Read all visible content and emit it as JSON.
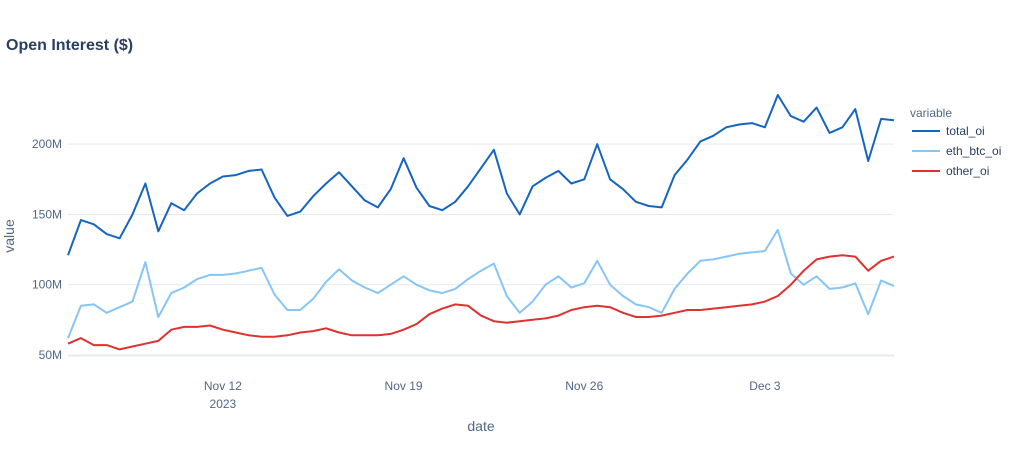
{
  "chart_data": {
    "type": "line",
    "title": "Open Interest ($)",
    "xlabel": "date",
    "ylabel": "value",
    "xlim": [
      "2023-11-06",
      "2023-12-08"
    ],
    "ylim": [
      45000000,
      235000000
    ],
    "grid": true,
    "legend_title": "variable",
    "legend_position": "right",
    "x_ticks": [
      {
        "date": "2023-11-12",
        "label": "Nov 12",
        "sublabel": "2023"
      },
      {
        "date": "2023-11-19",
        "label": "Nov 19",
        "sublabel": ""
      },
      {
        "date": "2023-11-26",
        "label": "Nov 26",
        "sublabel": ""
      },
      {
        "date": "2023-12-03",
        "label": "Dec 3",
        "sublabel": ""
      }
    ],
    "y_ticks": [
      {
        "value": 50000000,
        "label": "50M"
      },
      {
        "value": 100000000,
        "label": "100M"
      },
      {
        "value": 150000000,
        "label": "150M"
      },
      {
        "value": 200000000,
        "label": "200M"
      }
    ],
    "x": [
      "2023-11-06",
      "2023-11-06",
      "2023-11-07",
      "2023-11-07",
      "2023-11-08",
      "2023-11-08",
      "2023-11-09",
      "2023-11-09",
      "2023-11-10",
      "2023-11-10",
      "2023-11-11",
      "2023-11-11",
      "2023-11-12",
      "2023-11-12",
      "2023-11-13",
      "2023-11-13",
      "2023-11-14",
      "2023-11-14",
      "2023-11-15",
      "2023-11-15",
      "2023-11-16",
      "2023-11-16",
      "2023-11-17",
      "2023-11-17",
      "2023-11-18",
      "2023-11-18",
      "2023-11-19",
      "2023-11-19",
      "2023-11-20",
      "2023-11-20",
      "2023-11-21",
      "2023-11-21",
      "2023-11-22",
      "2023-11-22",
      "2023-11-23",
      "2023-11-23",
      "2023-11-24",
      "2023-11-24",
      "2023-11-25",
      "2023-11-25",
      "2023-11-26",
      "2023-11-26",
      "2023-11-27",
      "2023-11-27",
      "2023-11-28",
      "2023-11-28",
      "2023-11-29",
      "2023-11-29",
      "2023-11-30",
      "2023-11-30",
      "2023-12-01",
      "2023-12-01",
      "2023-12-02",
      "2023-12-02",
      "2023-12-03",
      "2023-12-03",
      "2023-12-04",
      "2023-12-04",
      "2023-12-05",
      "2023-12-05",
      "2023-12-06",
      "2023-12-06",
      "2023-12-07",
      "2023-12-07",
      "2023-12-08"
    ],
    "x_hour": [
      0,
      12,
      0,
      12,
      0,
      12,
      0,
      12,
      0,
      12,
      0,
      12,
      0,
      12,
      0,
      12,
      0,
      12,
      0,
      12,
      0,
      12,
      0,
      12,
      0,
      12,
      0,
      12,
      0,
      12,
      0,
      12,
      0,
      12,
      0,
      12,
      0,
      12,
      0,
      12,
      0,
      12,
      0,
      12,
      0,
      12,
      0,
      12,
      0,
      12,
      0,
      12,
      0,
      12,
      0,
      12,
      0,
      12,
      0,
      12,
      0,
      12,
      0,
      12,
      0
    ],
    "series": [
      {
        "name": "total_oi",
        "color": "#1565c0",
        "values": [
          121,
          146,
          143,
          136,
          133,
          150,
          172,
          138,
          158,
          153,
          165,
          172,
          177,
          178,
          181,
          182,
          162,
          149,
          152,
          163,
          172,
          180,
          170,
          160,
          155,
          168,
          190,
          169,
          156,
          153,
          159,
          170,
          183,
          196,
          165,
          150,
          170,
          176,
          181,
          172,
          175,
          200,
          175,
          168,
          159,
          156,
          155,
          178,
          189,
          202,
          206,
          212,
          214,
          215,
          212,
          235,
          220,
          216,
          226,
          208,
          212,
          225,
          188,
          218,
          217
        ]
      },
      {
        "name": "eth_btc_oi",
        "color": "#86c5f5",
        "values": [
          62,
          85,
          86,
          80,
          84,
          88,
          116,
          77,
          94,
          98,
          104,
          107,
          107,
          108,
          110,
          112,
          93,
          82,
          82,
          90,
          102,
          111,
          103,
          98,
          94,
          100,
          106,
          100,
          96,
          94,
          97,
          104,
          110,
          115,
          92,
          80,
          88,
          100,
          106,
          98,
          101,
          117,
          100,
          92,
          86,
          84,
          80,
          97,
          108,
          117,
          118,
          120,
          122,
          123,
          124,
          139,
          108,
          100,
          106,
          97,
          98,
          101,
          79,
          103,
          99
        ]
      },
      {
        "name": "other_oi",
        "color": "#e03131",
        "values": [
          58,
          62,
          57,
          57,
          54,
          56,
          58,
          60,
          68,
          70,
          70,
          71,
          68,
          66,
          64,
          63,
          63,
          64,
          66,
          67,
          69,
          66,
          64,
          64,
          64,
          65,
          68,
          72,
          79,
          83,
          86,
          85,
          78,
          74,
          73,
          74,
          75,
          76,
          78,
          82,
          84,
          85,
          84,
          80,
          77,
          77,
          78,
          80,
          82,
          82,
          83,
          84,
          85,
          86,
          88,
          92,
          100,
          110,
          118,
          120,
          121,
          120,
          110,
          117,
          120
        ]
      }
    ]
  }
}
